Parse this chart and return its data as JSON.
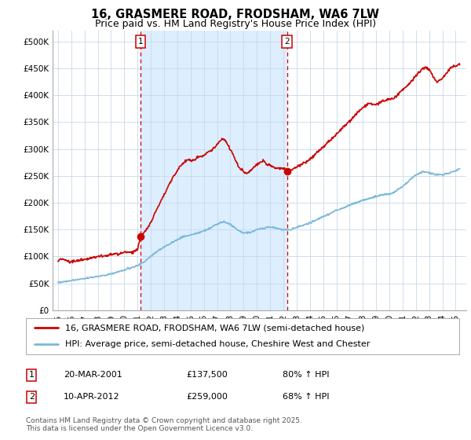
{
  "title": "16, GRASMERE ROAD, FRODSHAM, WA6 7LW",
  "subtitle": "Price paid vs. HM Land Registry's House Price Index (HPI)",
  "ylabel_ticks": [
    "£0",
    "£50K",
    "£100K",
    "£150K",
    "£200K",
    "£250K",
    "£300K",
    "£350K",
    "£400K",
    "£450K",
    "£500K"
  ],
  "ytick_values": [
    0,
    50000,
    100000,
    150000,
    200000,
    250000,
    300000,
    350000,
    400000,
    450000,
    500000
  ],
  "ylim": [
    0,
    520000
  ],
  "xlim_start": 1994.6,
  "xlim_end": 2025.8,
  "sale1_x": 2001.22,
  "sale1_y": 137500,
  "sale1_label": "1",
  "sale2_x": 2012.28,
  "sale2_y": 259000,
  "sale2_label": "2",
  "hpi_color": "#7ab8d9",
  "price_color": "#cc0000",
  "shade_color": "#ddeeff",
  "marker_vline_color": "#cc0000",
  "background_color": "#ffffff",
  "grid_color": "#c8d8e8",
  "legend_line1": "16, GRASMERE ROAD, FRODSHAM, WA6 7LW (semi-detached house)",
  "legend_line2": "HPI: Average price, semi-detached house, Cheshire West and Chester",
  "table_row1": [
    "1",
    "20-MAR-2001",
    "£137,500",
    "80% ↑ HPI"
  ],
  "table_row2": [
    "2",
    "10-APR-2012",
    "£259,000",
    "68% ↑ HPI"
  ],
  "footer": "Contains HM Land Registry data © Crown copyright and database right 2025.\nThis data is licensed under the Open Government Licence v3.0.",
  "title_fontsize": 10.5,
  "subtitle_fontsize": 9,
  "tick_fontsize": 7.5,
  "legend_fontsize": 8,
  "footer_fontsize": 6.5,
  "hpi_curve": {
    "1995.0": 52000,
    "1995.5": 53000,
    "1996.0": 55000,
    "1996.5": 57000,
    "1997.0": 59000,
    "1997.5": 61000,
    "1998.0": 63000,
    "1998.5": 65000,
    "1999.0": 68000,
    "1999.5": 71000,
    "2000.0": 75000,
    "2000.5": 79000,
    "2001.0": 83000,
    "2001.5": 90000,
    "2002.0": 100000,
    "2002.5": 110000,
    "2003.0": 118000,
    "2003.5": 124000,
    "2004.0": 132000,
    "2004.5": 137000,
    "2005.0": 140000,
    "2005.5": 143000,
    "2006.0": 148000,
    "2006.5": 153000,
    "2007.0": 160000,
    "2007.5": 165000,
    "2008.0": 160000,
    "2008.5": 150000,
    "2009.0": 143000,
    "2009.5": 145000,
    "2010.0": 150000,
    "2010.5": 153000,
    "2011.0": 155000,
    "2011.5": 153000,
    "2012.0": 149000,
    "2012.5": 150000,
    "2013.0": 154000,
    "2013.5": 158000,
    "2014.0": 163000,
    "2014.5": 168000,
    "2015.0": 174000,
    "2015.5": 180000,
    "2016.0": 186000,
    "2016.5": 190000,
    "2017.0": 196000,
    "2017.5": 200000,
    "2018.0": 205000,
    "2018.5": 208000,
    "2019.0": 212000,
    "2019.5": 215000,
    "2020.0": 216000,
    "2020.5": 222000,
    "2021.0": 230000,
    "2021.5": 242000,
    "2022.0": 252000,
    "2022.5": 258000,
    "2023.0": 256000,
    "2023.5": 252000,
    "2024.0": 252000,
    "2024.5": 255000,
    "2025.0": 260000,
    "2025.3": 263000
  },
  "price_curve": {
    "1995.0": 92000,
    "1995.3": 96000,
    "1995.6": 93000,
    "1995.9": 90000,
    "1996.2": 92000,
    "1996.5": 91000,
    "1996.8": 93000,
    "1997.1": 95000,
    "1997.4": 97000,
    "1997.7": 99000,
    "1998.0": 100000,
    "1998.3": 102000,
    "1998.6": 101000,
    "1998.9": 103000,
    "1999.2": 105000,
    "1999.5": 104000,
    "1999.8": 106000,
    "2000.1": 108000,
    "2000.4": 107000,
    "2000.7": 110000,
    "2001.0": 112000,
    "2001.22": 137500,
    "2001.5": 145000,
    "2001.8": 155000,
    "2002.1": 168000,
    "2002.4": 185000,
    "2002.7": 200000,
    "2003.0": 215000,
    "2003.3": 230000,
    "2003.6": 245000,
    "2003.9": 255000,
    "2004.2": 268000,
    "2004.5": 275000,
    "2004.8": 280000,
    "2005.1": 278000,
    "2005.4": 282000,
    "2005.7": 286000,
    "2006.0": 288000,
    "2006.3": 293000,
    "2006.6": 298000,
    "2006.9": 305000,
    "2007.2": 315000,
    "2007.5": 320000,
    "2007.8": 308000,
    "2008.1": 295000,
    "2008.4": 278000,
    "2008.7": 265000,
    "2009.0": 258000,
    "2009.3": 255000,
    "2009.6": 262000,
    "2009.9": 268000,
    "2010.2": 275000,
    "2010.5": 278000,
    "2010.8": 272000,
    "2011.1": 268000,
    "2011.4": 265000,
    "2011.7": 263000,
    "2012.0": 265000,
    "2012.28": 259000,
    "2012.5": 260000,
    "2012.8": 263000,
    "2013.1": 268000,
    "2013.4": 272000,
    "2013.7": 276000,
    "2014.0": 282000,
    "2014.3": 288000,
    "2014.6": 295000,
    "2014.9": 302000,
    "2015.2": 308000,
    "2015.5": 315000,
    "2015.8": 322000,
    "2016.1": 330000,
    "2016.4": 338000,
    "2016.7": 345000,
    "2017.0": 352000,
    "2017.3": 360000,
    "2017.6": 368000,
    "2017.9": 375000,
    "2018.2": 380000,
    "2018.5": 385000,
    "2018.8": 382000,
    "2019.1": 385000,
    "2019.4": 388000,
    "2019.7": 390000,
    "2020.0": 392000,
    "2020.3": 395000,
    "2020.6": 400000,
    "2020.9": 408000,
    "2021.2": 415000,
    "2021.5": 422000,
    "2021.8": 430000,
    "2022.1": 440000,
    "2022.4": 448000,
    "2022.7": 452000,
    "2023.0": 448000,
    "2023.3": 435000,
    "2023.6": 425000,
    "2023.9": 430000,
    "2024.2": 438000,
    "2024.5": 448000,
    "2024.8": 455000,
    "2025.1": 455000,
    "2025.3": 458000
  }
}
